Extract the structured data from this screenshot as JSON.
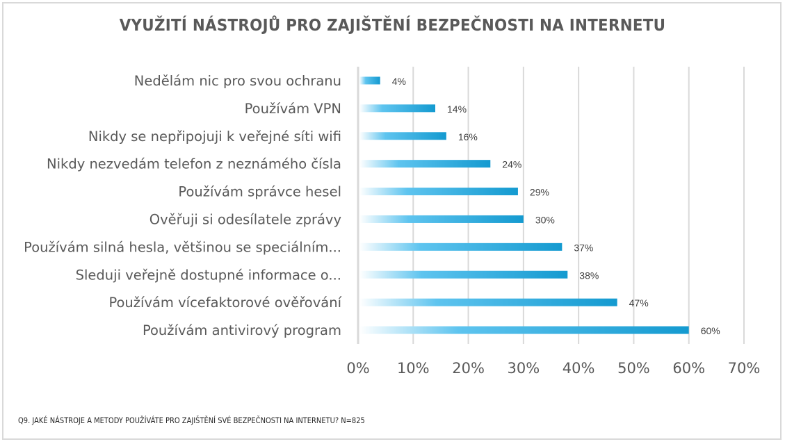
{
  "chart_data": {
    "type": "bar",
    "orientation": "horizontal",
    "title": "VYUŽITÍ NÁSTROJŮ PRO ZAJIŠTĚNÍ BEZPEČNOSTI NA INTERNETU",
    "footnote": "Q9. JAKÉ NÁSTROJE A METODY POUŽÍVÁTE PRO ZAJIŠTĚNÍ SVÉ BEZPEČNOSTI NA INTERNETU? N=825",
    "categories": [
      "Nedělám nic pro svou ochranu",
      "Používám VPN",
      "Nikdy se nepřipojuji k veřejné síti wifi",
      "Nikdy nezvedám telefon z neznámého čísla",
      "Používám správce hesel",
      "Ověřuji si odesílatele zprávy",
      "Používám silná hesla, většinou se speciálním...",
      "Sleduji veřejně dostupné informace o...",
      "Používám vícefaktorové ověřování",
      "Používám antivirový program"
    ],
    "values": [
      4,
      14,
      16,
      24,
      29,
      30,
      37,
      38,
      47,
      60
    ],
    "data_labels": [
      "4%",
      "14%",
      "16%",
      "24%",
      "29%",
      "30%",
      "37%",
      "38%",
      "47%",
      "60%"
    ],
    "xlabel": "",
    "ylabel": "",
    "xlim": [
      0,
      70
    ],
    "x_ticks": [
      0,
      10,
      20,
      30,
      40,
      50,
      60,
      70
    ],
    "x_tick_labels": [
      "0%",
      "10%",
      "20%",
      "30%",
      "40%",
      "50%",
      "60%",
      "70%"
    ],
    "grid": true,
    "legend": "none",
    "colors": {
      "bar_start": "#ffffff",
      "bar_mid": "#5ec4ef",
      "bar_end": "#149ad0",
      "grid": "#d9d9d9",
      "text": "#595959"
    }
  }
}
